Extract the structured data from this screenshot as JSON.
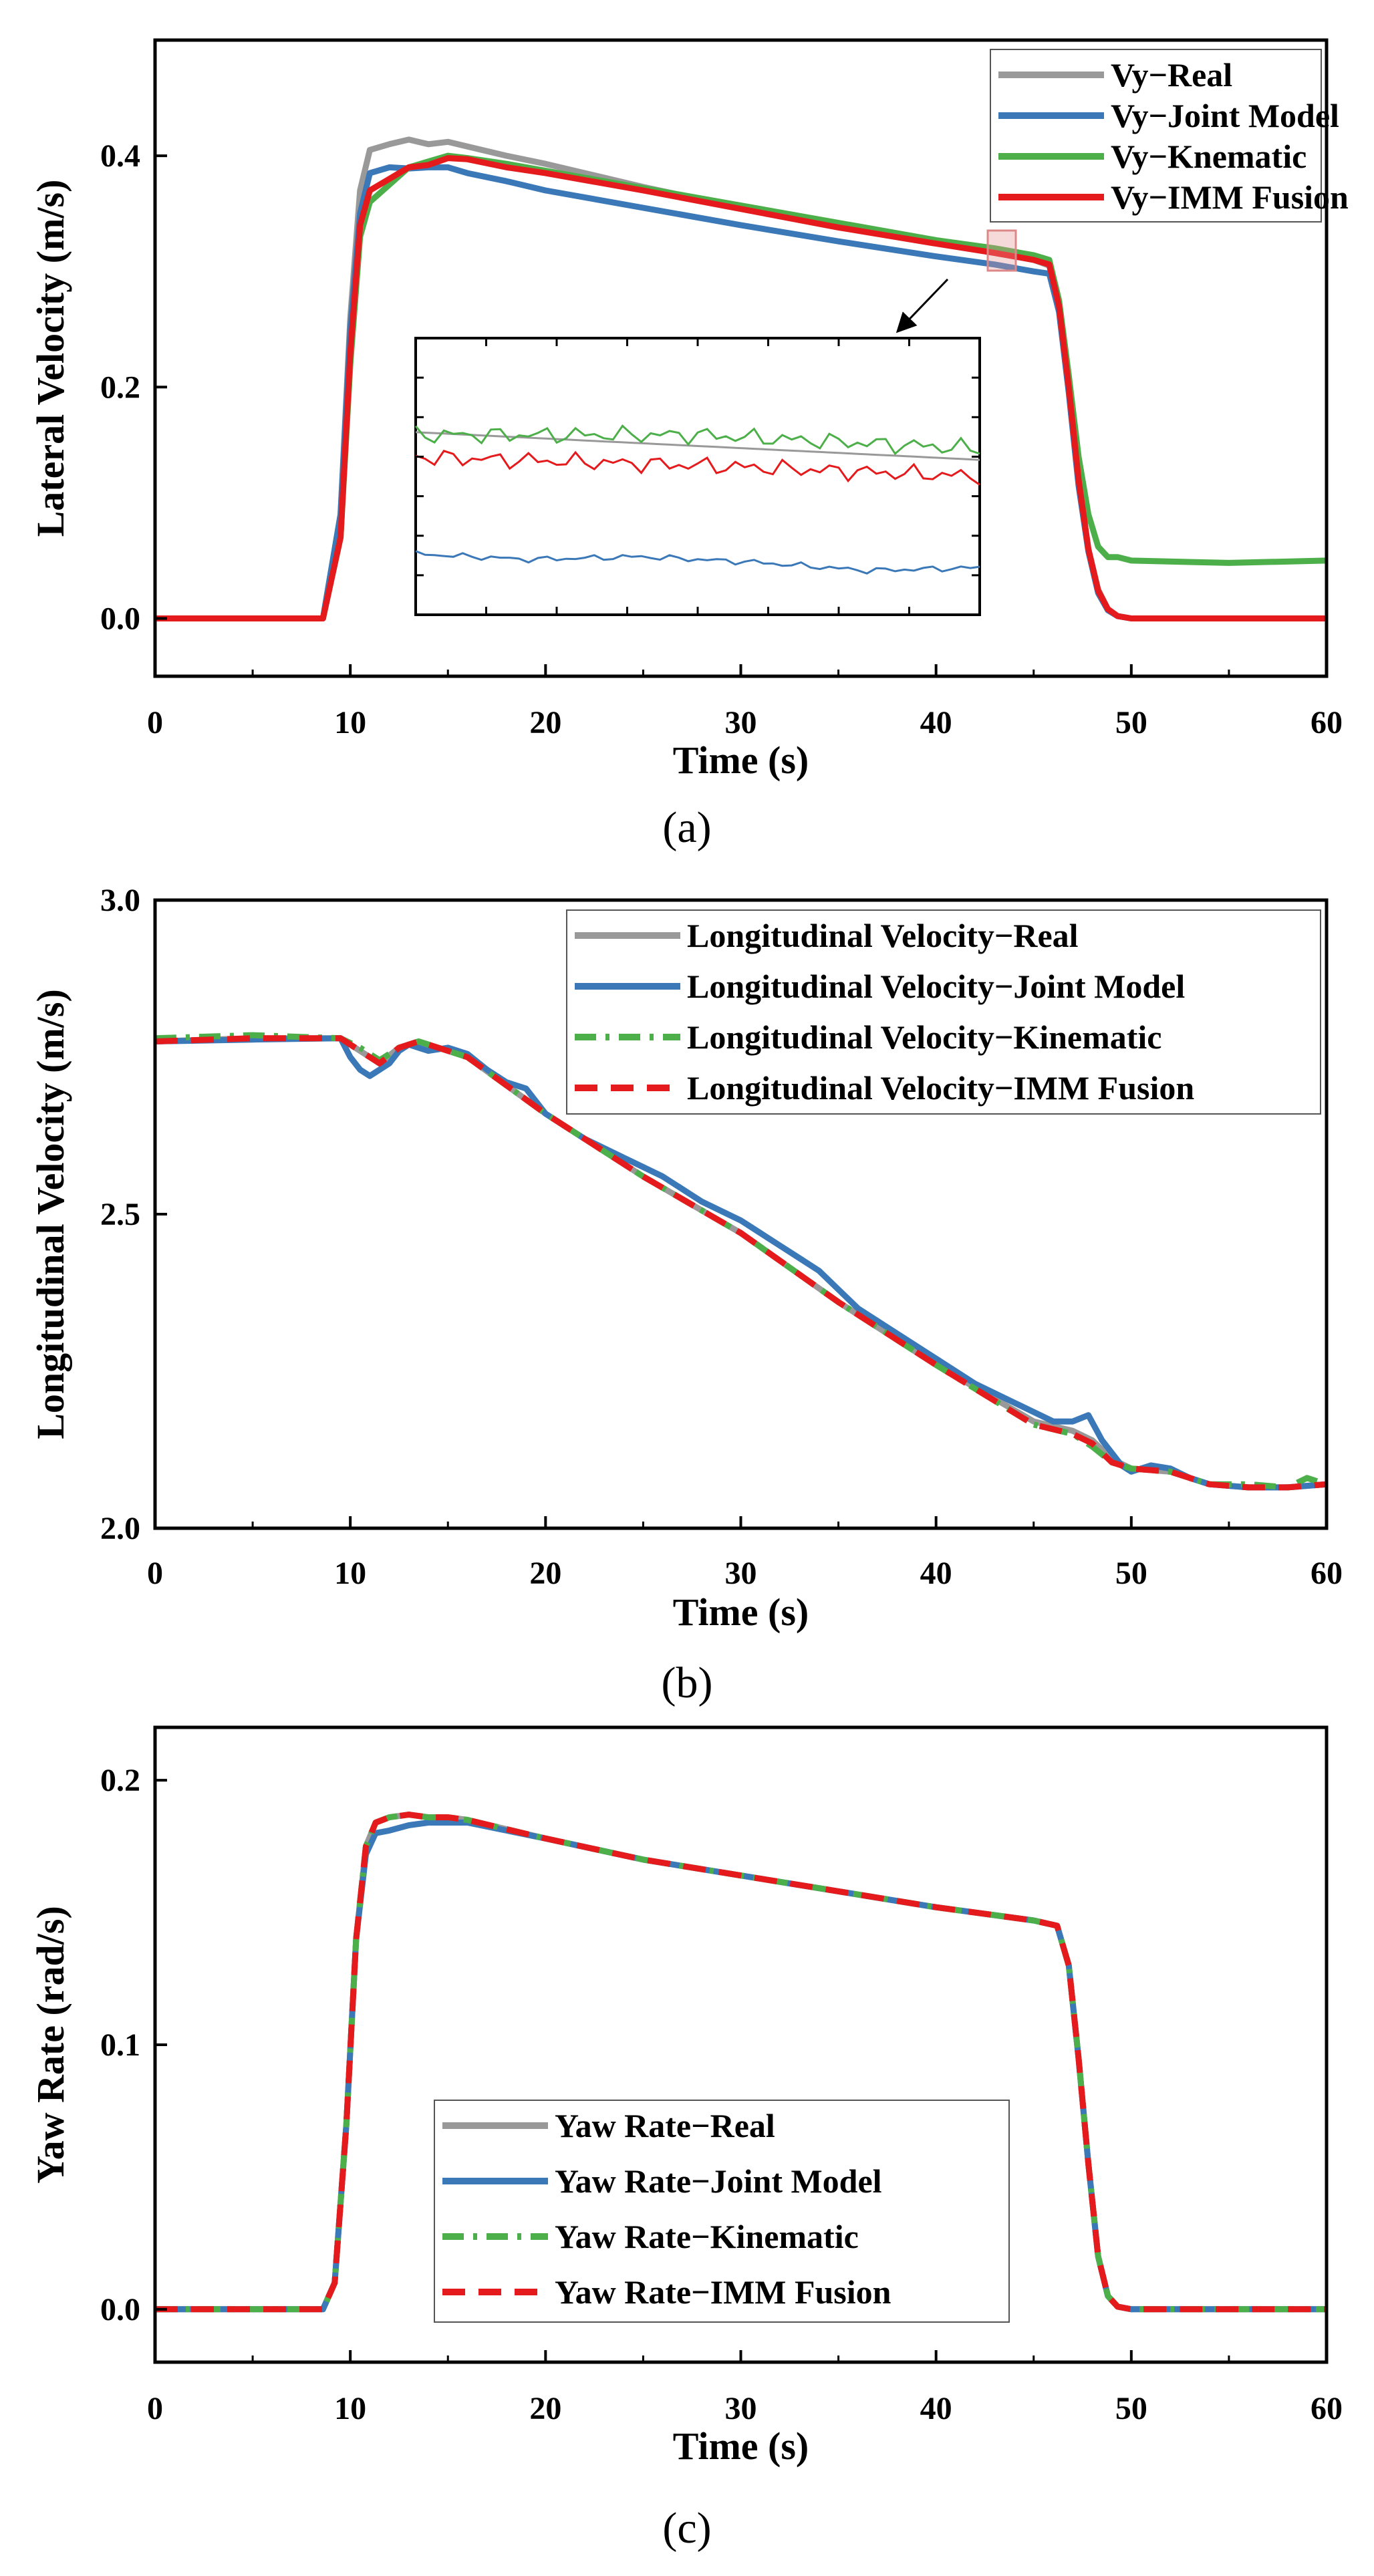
{
  "chart_data": [
    {
      "type": "line",
      "title": "",
      "caption": "(a)",
      "xlabel": "Time (s)",
      "ylabel": "Lateral Velocity (m/s)",
      "xlim": [
        0,
        60
      ],
      "ylim": [
        -0.05,
        0.5
      ],
      "xticks": [
        "0",
        "10",
        "20",
        "30",
        "40",
        "50",
        "60"
      ],
      "yticks": [
        "0.0",
        "0.2",
        "0.4"
      ],
      "grid": false,
      "legend_position": "top-right",
      "series": [
        {
          "name": "Vy−Real",
          "color": "#999999",
          "dash": "solid",
          "x": [
            0,
            8.6,
            9.5,
            10.0,
            10.5,
            11.0,
            12.0,
            13.0,
            14.0,
            15.0,
            16.0,
            18.0,
            20.0,
            25.0,
            30.0,
            35.0,
            40.0,
            43.0,
            45.0,
            45.8,
            46.3,
            46.8,
            47.3,
            47.8,
            48.3,
            48.8,
            49.3,
            50.0,
            60.0
          ],
          "y": [
            0.0,
            0.0,
            0.09,
            0.26,
            0.37,
            0.405,
            0.41,
            0.414,
            0.41,
            0.412,
            0.408,
            0.4,
            0.393,
            0.373,
            0.355,
            0.34,
            0.325,
            0.316,
            0.31,
            0.305,
            0.27,
            0.2,
            0.12,
            0.06,
            0.025,
            0.008,
            0.002,
            0.0,
            0.0
          ]
        },
        {
          "name": "Vy−Joint Model",
          "color": "#3a78b8",
          "dash": "solid",
          "x": [
            0,
            8.6,
            9.5,
            10.0,
            10.5,
            11.0,
            12.0,
            13.0,
            14.0,
            15.0,
            16.0,
            18.0,
            20.0,
            25.0,
            30.0,
            35.0,
            40.0,
            43.0,
            45.0,
            45.8,
            46.3,
            46.8,
            47.3,
            47.8,
            48.3,
            48.8,
            49.3,
            50.0,
            60.0
          ],
          "y": [
            0.0,
            0.0,
            0.09,
            0.25,
            0.35,
            0.385,
            0.39,
            0.389,
            0.39,
            0.39,
            0.385,
            0.378,
            0.37,
            0.355,
            0.34,
            0.326,
            0.313,
            0.306,
            0.3,
            0.298,
            0.265,
            0.195,
            0.115,
            0.058,
            0.022,
            0.007,
            0.002,
            0.0,
            0.0
          ]
        },
        {
          "name": "Vy−Knematic",
          "color": "#4daf4a",
          "dash": "solid",
          "x": [
            0,
            8.6,
            9.5,
            10.0,
            10.5,
            11.0,
            12.0,
            13.0,
            14.0,
            15.0,
            16.0,
            18.0,
            20.0,
            25.0,
            30.0,
            35.0,
            40.0,
            43.0,
            45.0,
            45.8,
            46.3,
            46.8,
            47.3,
            47.8,
            48.3,
            48.8,
            49.3,
            50.0,
            55.0,
            60.0
          ],
          "y": [
            0.0,
            0.0,
            0.07,
            0.22,
            0.33,
            0.36,
            0.375,
            0.39,
            0.395,
            0.4,
            0.398,
            0.393,
            0.387,
            0.372,
            0.357,
            0.342,
            0.327,
            0.32,
            0.314,
            0.31,
            0.275,
            0.21,
            0.14,
            0.09,
            0.062,
            0.053,
            0.053,
            0.05,
            0.048,
            0.05
          ]
        },
        {
          "name": "Vy−IMM Fusion",
          "color": "#e41a1c",
          "dash": "solid",
          "x": [
            0,
            8.6,
            9.5,
            10.0,
            10.5,
            11.0,
            12.0,
            13.0,
            14.0,
            15.0,
            16.0,
            18.0,
            20.0,
            25.0,
            30.0,
            35.0,
            40.0,
            43.0,
            45.0,
            45.8,
            46.3,
            46.8,
            47.3,
            47.8,
            48.3,
            48.8,
            49.3,
            50.0,
            60.0
          ],
          "y": [
            0.0,
            0.0,
            0.07,
            0.23,
            0.34,
            0.37,
            0.38,
            0.39,
            0.392,
            0.398,
            0.397,
            0.39,
            0.385,
            0.37,
            0.354,
            0.338,
            0.324,
            0.316,
            0.31,
            0.306,
            0.27,
            0.2,
            0.12,
            0.06,
            0.024,
            0.008,
            0.002,
            0.0,
            0.0
          ]
        }
      ],
      "inset": {
        "note": "zoomed detail of the marked region near 43 s",
        "series": [
          {
            "name": "Vy−Real",
            "color": "#999999",
            "x": [
              0,
              1
            ],
            "y": [
              0.66,
              0.56
            ]
          },
          {
            "name": "Vy−Joint Model",
            "color": "#3a78b8",
            "x": [
              0,
              0.2,
              0.4,
              0.6,
              0.8,
              1.0
            ],
            "y": [
              0.22,
              0.2,
              0.21,
              0.19,
              0.16,
              0.17
            ]
          },
          {
            "name": "Vy−Knematic",
            "color": "#4daf4a",
            "x": [
              0,
              0.5,
              1.0
            ],
            "y": [
              0.65,
              0.65,
              0.6
            ]
          },
          {
            "name": "Vy−IMM Fusion",
            "color": "#e41a1c",
            "x": [
              0,
              0.5,
              1.0
            ],
            "y": [
              0.57,
              0.54,
              0.5
            ]
          }
        ]
      }
    },
    {
      "type": "line",
      "title": "",
      "caption": "(b)",
      "xlabel": "Time (s)",
      "ylabel": "Longitudinal Velocity (m/s)",
      "xlim": [
        0,
        60
      ],
      "ylim": [
        2.0,
        3.0
      ],
      "xticks": [
        "0",
        "10",
        "20",
        "30",
        "40",
        "50",
        "60"
      ],
      "yticks": [
        "2.0",
        "2.5",
        "3.0"
      ],
      "grid": false,
      "legend_position": "top-right",
      "series": [
        {
          "name": "Longitudinal Velocity−Real",
          "color": "#999999",
          "dash": "solid",
          "x": [
            0,
            5,
            9.5,
            10.5,
            11.5,
            12.5,
            13.5,
            15,
            16,
            20,
            25,
            30,
            35,
            40,
            45,
            47,
            48,
            49,
            50,
            52,
            54,
            56,
            58,
            60
          ],
          "y": [
            2.775,
            2.78,
            2.78,
            2.76,
            2.74,
            2.765,
            2.775,
            2.76,
            2.75,
            2.66,
            2.56,
            2.47,
            2.36,
            2.26,
            2.17,
            2.155,
            2.14,
            2.11,
            2.095,
            2.09,
            2.07,
            2.065,
            2.065,
            2.07
          ]
        },
        {
          "name": "Longitudinal Velocity−Joint Model",
          "color": "#3a78b8",
          "dash": "solid",
          "x": [
            0,
            5,
            9.5,
            10.0,
            10.5,
            11.0,
            11.5,
            12.0,
            12.5,
            13.0,
            14.0,
            15.0,
            16.0,
            17.0,
            18.0,
            19.0,
            20.0,
            21.0,
            22.0,
            24.0,
            26.0,
            28.0,
            30.0,
            31.0,
            32.0,
            33.0,
            34.0,
            35.0,
            36.0,
            38.0,
            40.0,
            42.0,
            44.0,
            46.0,
            47.0,
            47.8,
            48.5,
            49.5,
            50.0,
            51.0,
            52.0,
            53.0,
            54.0,
            56.0,
            58.0,
            60.0
          ],
          "y": [
            2.775,
            2.778,
            2.78,
            2.75,
            2.73,
            2.72,
            2.73,
            2.74,
            2.76,
            2.77,
            2.76,
            2.765,
            2.755,
            2.73,
            2.71,
            2.7,
            2.66,
            2.64,
            2.62,
            2.59,
            2.56,
            2.52,
            2.49,
            2.47,
            2.45,
            2.43,
            2.41,
            2.38,
            2.35,
            2.31,
            2.27,
            2.23,
            2.2,
            2.17,
            2.17,
            2.18,
            2.14,
            2.1,
            2.09,
            2.1,
            2.095,
            2.08,
            2.07,
            2.065,
            2.065,
            2.07
          ]
        },
        {
          "name": "Longitudinal Velocity−Kinematic",
          "color": "#4daf4a",
          "dash": "dashdot",
          "x": [
            0,
            5,
            9.5,
            10.5,
            11.5,
            12.5,
            13.5,
            15,
            16,
            20,
            25,
            30,
            35,
            40,
            45,
            47,
            48,
            49,
            50,
            52,
            54,
            56,
            58,
            59,
            60
          ],
          "y": [
            2.78,
            2.785,
            2.78,
            2.765,
            2.745,
            2.765,
            2.775,
            2.76,
            2.75,
            2.66,
            2.56,
            2.47,
            2.36,
            2.26,
            2.165,
            2.15,
            2.13,
            2.105,
            2.095,
            2.09,
            2.07,
            2.07,
            2.065,
            2.08,
            2.07
          ]
        },
        {
          "name": "Longitudinal Velocity−IMM Fusion",
          "color": "#e41a1c",
          "dash": "dashed",
          "x": [
            0,
            5,
            9.5,
            10.5,
            11.5,
            12.5,
            13.5,
            15,
            16,
            20,
            25,
            30,
            35,
            40,
            45,
            47,
            48,
            49,
            50,
            52,
            54,
            56,
            58,
            60
          ],
          "y": [
            2.775,
            2.78,
            2.78,
            2.76,
            2.74,
            2.765,
            2.775,
            2.76,
            2.75,
            2.66,
            2.56,
            2.47,
            2.36,
            2.26,
            2.165,
            2.15,
            2.135,
            2.105,
            2.095,
            2.09,
            2.07,
            2.065,
            2.065,
            2.07
          ]
        }
      ]
    },
    {
      "type": "line",
      "title": "",
      "caption": "(c)",
      "xlabel": "Time (s)",
      "ylabel": "Yaw Rate (rad/s)",
      "xlim": [
        0,
        60
      ],
      "ylim": [
        -0.02,
        0.22
      ],
      "xticks": [
        "0",
        "10",
        "20",
        "30",
        "40",
        "50",
        "60"
      ],
      "yticks": [
        "0.0",
        "0.1",
        "0.2"
      ],
      "grid": false,
      "legend_position": "bottom-center",
      "series": [
        {
          "name": "Yaw Rate−Real",
          "color": "#999999",
          "dash": "solid",
          "x": [
            0,
            8.6,
            9.2,
            9.8,
            10.3,
            10.8,
            11.3,
            12,
            13,
            14,
            15,
            16,
            20,
            25,
            30,
            35,
            40,
            45,
            46.2,
            46.8,
            47.3,
            47.8,
            48.3,
            48.8,
            49.3,
            50,
            60
          ],
          "y": [
            0.0,
            0.0,
            0.01,
            0.07,
            0.14,
            0.175,
            0.184,
            0.186,
            0.187,
            0.186,
            0.186,
            0.185,
            0.178,
            0.17,
            0.164,
            0.158,
            0.152,
            0.147,
            0.145,
            0.13,
            0.095,
            0.055,
            0.02,
            0.005,
            0.001,
            0.0,
            0.0
          ]
        },
        {
          "name": "Yaw Rate−Joint Model",
          "color": "#3a78b8",
          "dash": "solid",
          "x": [
            0,
            8.6,
            9.2,
            9.8,
            10.3,
            10.8,
            11.3,
            12,
            13,
            14,
            15,
            16,
            20,
            25,
            30,
            35,
            40,
            45,
            46.2,
            46.8,
            47.3,
            47.8,
            48.3,
            48.8,
            49.3,
            50,
            60
          ],
          "y": [
            0.0,
            0.0,
            0.01,
            0.07,
            0.14,
            0.172,
            0.18,
            0.181,
            0.183,
            0.184,
            0.184,
            0.184,
            0.178,
            0.17,
            0.164,
            0.158,
            0.152,
            0.147,
            0.145,
            0.13,
            0.095,
            0.055,
            0.02,
            0.005,
            0.001,
            0.0,
            0.0
          ]
        },
        {
          "name": "Yaw Rate−Kinematic",
          "color": "#4daf4a",
          "dash": "dashdot",
          "x": [
            0,
            8.6,
            9.2,
            9.8,
            10.3,
            10.8,
            11.3,
            12,
            13,
            14,
            15,
            16,
            20,
            25,
            30,
            35,
            40,
            45,
            46.2,
            46.8,
            47.3,
            47.8,
            48.3,
            48.8,
            49.3,
            50,
            60
          ],
          "y": [
            0.0,
            0.0,
            0.01,
            0.07,
            0.14,
            0.175,
            0.184,
            0.186,
            0.187,
            0.186,
            0.186,
            0.185,
            0.178,
            0.17,
            0.164,
            0.158,
            0.152,
            0.147,
            0.145,
            0.13,
            0.095,
            0.055,
            0.02,
            0.005,
            0.001,
            0.0,
            0.0
          ]
        },
        {
          "name": "Yaw Rate−IMM Fusion",
          "color": "#e41a1c",
          "dash": "dashed",
          "x": [
            0,
            8.6,
            9.2,
            9.8,
            10.3,
            10.8,
            11.3,
            12,
            13,
            14,
            15,
            16,
            20,
            25,
            30,
            35,
            40,
            45,
            46.2,
            46.8,
            47.3,
            47.8,
            48.3,
            48.8,
            49.3,
            50,
            60
          ],
          "y": [
            0.0,
            0.0,
            0.01,
            0.07,
            0.14,
            0.175,
            0.184,
            0.186,
            0.187,
            0.186,
            0.186,
            0.185,
            0.178,
            0.17,
            0.164,
            0.158,
            0.152,
            0.147,
            0.145,
            0.13,
            0.095,
            0.055,
            0.02,
            0.005,
            0.001,
            0.0,
            0.0
          ]
        }
      ]
    }
  ]
}
